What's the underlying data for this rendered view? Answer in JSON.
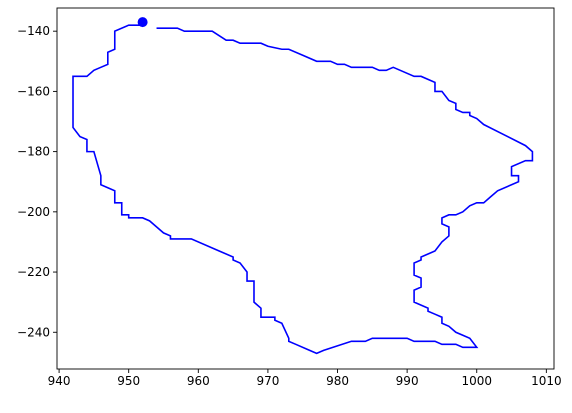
{
  "chart_data": {
    "type": "line",
    "title": "",
    "xlabel": "",
    "ylabel": "",
    "xlim": [
      939.7,
      1011.1
    ],
    "ylim": [
      -252.2,
      -132.3
    ],
    "grid": false,
    "x_ticks": [
      940,
      950,
      960,
      970,
      980,
      990,
      1000,
      1010
    ],
    "y_ticks": [
      -140,
      -160,
      -180,
      -200,
      -220,
      -240
    ],
    "x_tick_labels": [
      "940",
      "950",
      "960",
      "970",
      "980",
      "990",
      "1000",
      "1010"
    ],
    "y_tick_labels": [
      "−140",
      "−160",
      "−180",
      "−200",
      "−220",
      "−240"
    ],
    "series": [
      {
        "color": "#0000ff",
        "points": [
          [
            954,
            -139
          ],
          [
            957,
            -139
          ],
          [
            958,
            -140
          ],
          [
            962,
            -140
          ],
          [
            964,
            -143
          ],
          [
            965,
            -143
          ],
          [
            966,
            -144
          ],
          [
            969,
            -144
          ],
          [
            970,
            -145
          ],
          [
            972,
            -146
          ],
          [
            973,
            -146
          ],
          [
            975,
            -148
          ],
          [
            977,
            -150
          ],
          [
            979,
            -150
          ],
          [
            980,
            -151
          ],
          [
            981,
            -151
          ],
          [
            982,
            -152
          ],
          [
            985,
            -152
          ],
          [
            986,
            -153
          ],
          [
            987,
            -153
          ],
          [
            988,
            -152
          ],
          [
            989,
            -153
          ],
          [
            991,
            -155
          ],
          [
            992,
            -155
          ],
          [
            993,
            -156
          ],
          [
            994,
            -157
          ],
          [
            994,
            -160
          ],
          [
            995,
            -160
          ],
          [
            996,
            -163
          ],
          [
            997,
            -164
          ],
          [
            997,
            -166
          ],
          [
            998,
            -167
          ],
          [
            999,
            -167
          ],
          [
            999,
            -168
          ],
          [
            1000,
            -169
          ],
          [
            1001,
            -171
          ],
          [
            1007,
            -178
          ],
          [
            1008,
            -180
          ],
          [
            1008,
            -183
          ],
          [
            1007,
            -183
          ],
          [
            1005,
            -185
          ],
          [
            1005,
            -188
          ],
          [
            1006,
            -188
          ],
          [
            1006,
            -190
          ],
          [
            1003,
            -193
          ],
          [
            1002,
            -195
          ],
          [
            1001,
            -197
          ],
          [
            1000,
            -197
          ],
          [
            999,
            -198
          ],
          [
            998,
            -200
          ],
          [
            997,
            -201
          ],
          [
            996,
            -201
          ],
          [
            995,
            -202
          ],
          [
            995,
            -204
          ],
          [
            996,
            -205
          ],
          [
            996,
            -208
          ],
          [
            995,
            -210
          ],
          [
            994,
            -213
          ],
          [
            993,
            -214
          ],
          [
            992,
            -215
          ],
          [
            992,
            -216
          ],
          [
            991,
            -217
          ],
          [
            991,
            -221
          ],
          [
            992,
            -222
          ],
          [
            992,
            -225
          ],
          [
            991,
            -226
          ],
          [
            991,
            -230
          ],
          [
            992,
            -231
          ],
          [
            993,
            -232
          ],
          [
            993,
            -233
          ],
          [
            994,
            -234
          ],
          [
            995,
            -235
          ],
          [
            995,
            -237
          ],
          [
            996,
            -238
          ],
          [
            997,
            -240
          ],
          [
            998,
            -241
          ],
          [
            999,
            -242
          ],
          [
            1000,
            -245
          ],
          [
            998,
            -245
          ],
          [
            997,
            -244
          ],
          [
            995,
            -244
          ],
          [
            994,
            -243
          ],
          [
            991,
            -243
          ],
          [
            990,
            -242
          ],
          [
            985,
            -242
          ],
          [
            984,
            -243
          ],
          [
            982,
            -243
          ],
          [
            978,
            -246
          ],
          [
            977,
            -247
          ],
          [
            976,
            -246
          ],
          [
            974,
            -244
          ],
          [
            973,
            -243
          ],
          [
            973,
            -242
          ],
          [
            972,
            -237
          ],
          [
            971,
            -236
          ],
          [
            971,
            -235
          ],
          [
            969,
            -235
          ],
          [
            969,
            -232
          ],
          [
            968,
            -230
          ],
          [
            968,
            -223
          ],
          [
            967,
            -223
          ],
          [
            967,
            -220
          ],
          [
            966,
            -217
          ],
          [
            965,
            -216
          ],
          [
            965,
            -215
          ],
          [
            963,
            -213
          ],
          [
            959,
            -209
          ],
          [
            956,
            -209
          ],
          [
            956,
            -208
          ],
          [
            955,
            -207
          ],
          [
            954,
            -205
          ],
          [
            953,
            -203
          ],
          [
            952,
            -202
          ],
          [
            950,
            -202
          ],
          [
            950,
            -201
          ],
          [
            949,
            -201
          ],
          [
            949,
            -197
          ],
          [
            948,
            -197
          ],
          [
            948,
            -193
          ],
          [
            947,
            -192
          ],
          [
            946,
            -191
          ],
          [
            946,
            -188
          ],
          [
            945,
            -180
          ],
          [
            944,
            -180
          ],
          [
            944,
            -176
          ],
          [
            943,
            -175
          ],
          [
            942,
            -172
          ],
          [
            942,
            -171
          ],
          [
            942,
            -155
          ],
          [
            944,
            -155
          ],
          [
            945,
            -153
          ],
          [
            946,
            -152
          ],
          [
            947,
            -151
          ],
          [
            947,
            -147
          ],
          [
            948,
            -146
          ],
          [
            948,
            -140
          ],
          [
            950,
            -138
          ],
          [
            952,
            -138
          ],
          [
            952,
            -137
          ]
        ]
      }
    ],
    "markers": [
      {
        "x": 952,
        "y": -137,
        "color": "#0000ff"
      }
    ]
  }
}
